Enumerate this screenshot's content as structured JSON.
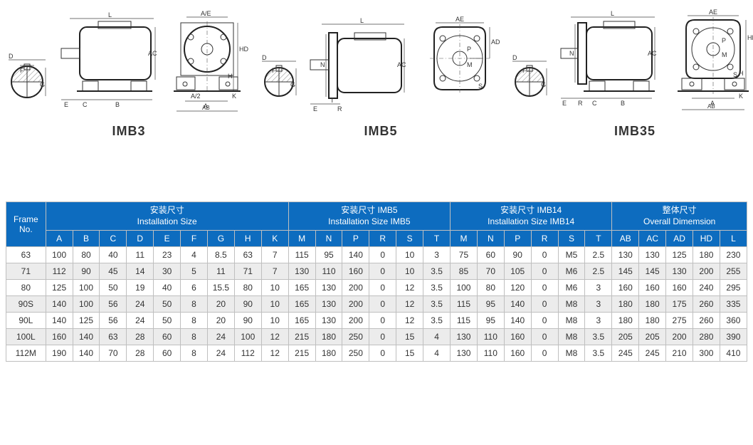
{
  "diagrams": {
    "imb3": {
      "label": "IMB3"
    },
    "imb5": {
      "label": "IMB5"
    },
    "imb35": {
      "label": "IMB35"
    },
    "dims": {
      "D": "D",
      "F": "F",
      "G": "G",
      "L": "L",
      "AC": "AC",
      "E": "E",
      "C": "C",
      "B": "B",
      "AE": "A/E",
      "HD": "HD",
      "A2": "A/2",
      "A": "A",
      "K": "K",
      "AB": "AB",
      "H": "H",
      "N": "N",
      "T": "T",
      "R": "R",
      "AD": "AD",
      "M": "M",
      "S": "S",
      "P": "P",
      "AE2": "AE"
    }
  },
  "table": {
    "header_bg": "#0d6cbf",
    "header_fg": "#ffffff",
    "row_alt_bg": "#ececec",
    "border_color": "#bfbfbf",
    "frame_label": "Frame\nNo.",
    "groups": [
      {
        "cn": "安装尺寸",
        "en": "Installation Size",
        "span": 9
      },
      {
        "cn": "安装尺寸 IMB5",
        "en": "Installation Size IMB5",
        "span": 6
      },
      {
        "cn": "安装尺寸 IMB14",
        "en": "Installation Size IMB14",
        "span": 6
      },
      {
        "cn": "整体尺寸",
        "en": "Overall Dimemsion",
        "span": 5
      }
    ],
    "cols": [
      "A",
      "B",
      "C",
      "D",
      "E",
      "F",
      "G",
      "H",
      "K",
      "M",
      "N",
      "P",
      "R",
      "S",
      "T",
      "M",
      "N",
      "P",
      "R",
      "S",
      "T",
      "AB",
      "AC",
      "AD",
      "HD",
      "L"
    ],
    "rows": [
      {
        "frame": "63",
        "v": [
          100,
          80,
          40,
          11,
          23,
          4,
          8.5,
          63,
          7,
          115,
          95,
          140,
          0,
          10,
          3,
          75,
          60,
          90,
          0,
          "M5",
          2.5,
          130,
          130,
          125,
          180,
          230
        ]
      },
      {
        "frame": "71",
        "v": [
          112,
          90,
          45,
          14,
          30,
          5,
          11,
          71,
          7,
          130,
          110,
          160,
          0,
          10,
          3.5,
          85,
          70,
          105,
          0,
          "M6",
          2.5,
          145,
          145,
          130,
          200,
          255
        ]
      },
      {
        "frame": "80",
        "v": [
          125,
          100,
          50,
          19,
          40,
          6,
          15.5,
          80,
          10,
          165,
          130,
          200,
          0,
          12,
          3.5,
          100,
          80,
          120,
          0,
          "M6",
          3,
          160,
          160,
          160,
          240,
          295
        ]
      },
      {
        "frame": "90S",
        "v": [
          140,
          100,
          56,
          24,
          50,
          8,
          20,
          90,
          10,
          165,
          130,
          200,
          0,
          12,
          3.5,
          115,
          95,
          140,
          0,
          "M8",
          3,
          180,
          180,
          175,
          260,
          335
        ]
      },
      {
        "frame": "90L",
        "v": [
          140,
          125,
          56,
          24,
          50,
          8,
          20,
          90,
          10,
          165,
          130,
          200,
          0,
          12,
          3.5,
          115,
          95,
          140,
          0,
          "M8",
          3,
          180,
          180,
          275,
          260,
          360
        ]
      },
      {
        "frame": "100L",
        "v": [
          160,
          140,
          63,
          28,
          60,
          8,
          24,
          100,
          12,
          215,
          180,
          250,
          0,
          15,
          4,
          130,
          110,
          160,
          0,
          "M8",
          3.5,
          205,
          205,
          200,
          280,
          390
        ]
      },
      {
        "frame": "112M",
        "v": [
          190,
          140,
          70,
          28,
          60,
          8,
          24,
          112,
          12,
          215,
          180,
          250,
          0,
          15,
          4,
          130,
          110,
          160,
          0,
          "M8",
          3.5,
          245,
          245,
          210,
          300,
          410
        ]
      }
    ]
  }
}
